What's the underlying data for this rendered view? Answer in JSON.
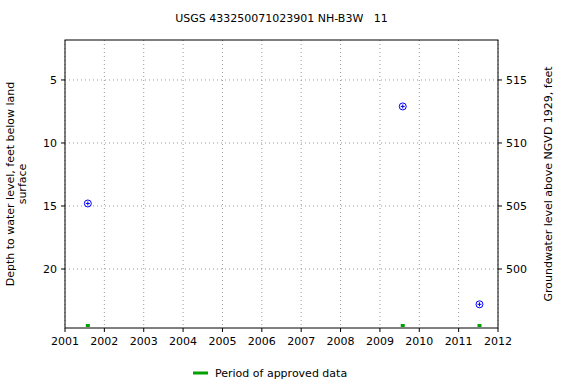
{
  "chart_data": {
    "type": "scatter",
    "title": "USGS 433250071023901 NH-B3W   11",
    "y_label": [
      "Depth to water level, feet below land",
      "surface"
    ],
    "y2_label": "Groundwater level above NGVD 1929, feet",
    "xlim": [
      2001,
      2012
    ],
    "xticks": [
      2001,
      2002,
      2003,
      2004,
      2005,
      2006,
      2007,
      2008,
      2009,
      2010,
      2011,
      2012
    ],
    "ylim": [
      24.68,
      1.83
    ],
    "yticks": [
      5,
      10,
      15,
      20
    ],
    "y2lim": [
      495.32,
      518.17
    ],
    "y2ticks": [
      500,
      505,
      510,
      515
    ],
    "grid": true,
    "legend": "bottom",
    "series": [
      {
        "color": "#0000ff",
        "marker": "circle_cross",
        "x": [
          2001.58,
          2009.58,
          2011.53
        ],
        "values": [
          14.8,
          7.1,
          22.8
        ]
      }
    ],
    "approved": {
      "name": "Period of approved data",
      "color": "#00a000",
      "x": [
        2001.58,
        2009.58,
        2011.53
      ]
    }
  }
}
